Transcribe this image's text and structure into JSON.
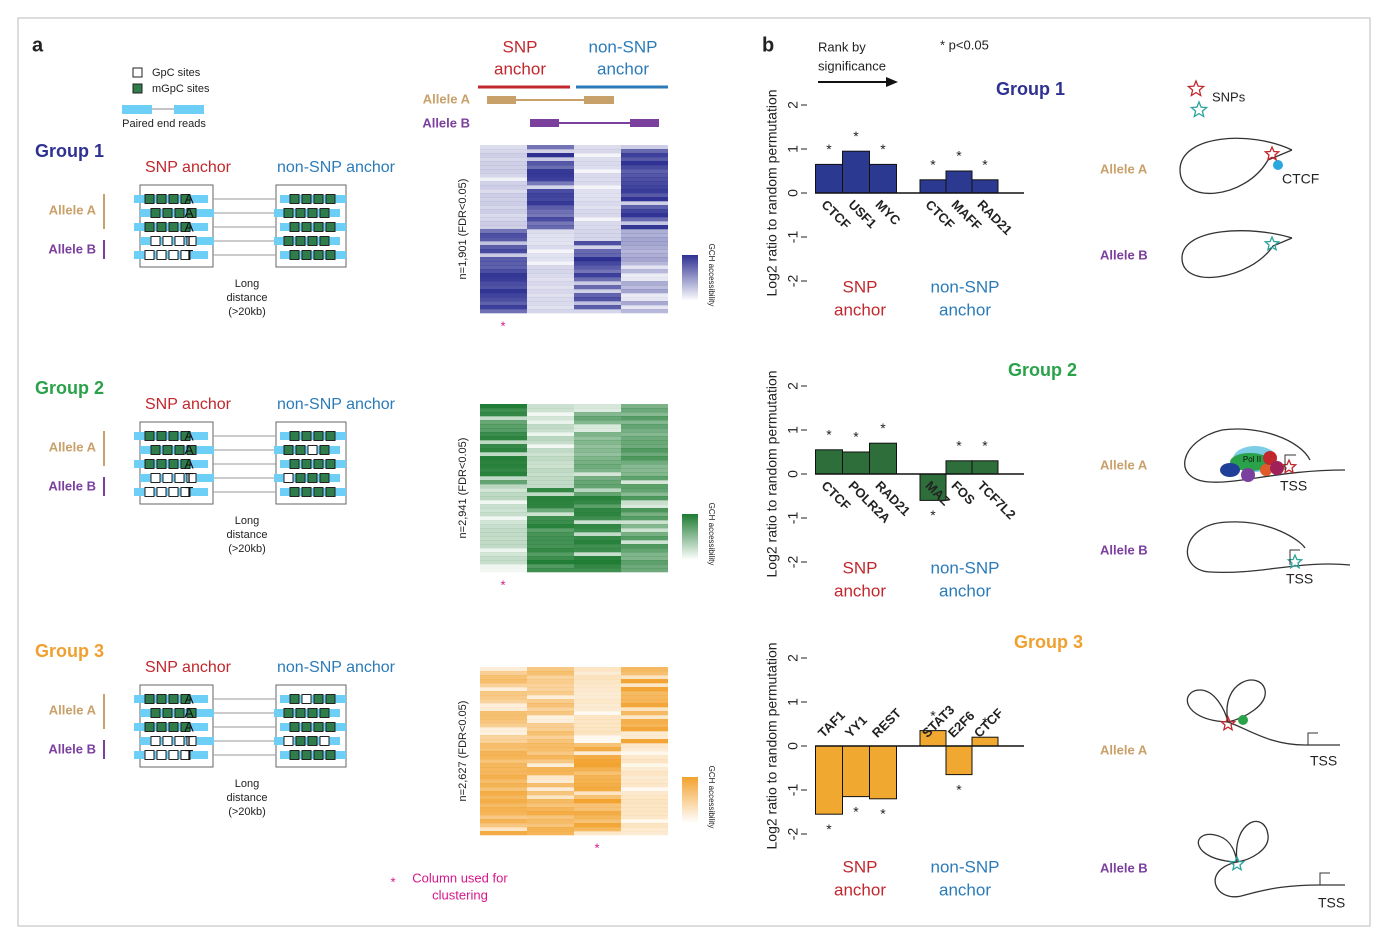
{
  "chart_data": [
    {
      "type": "bar",
      "title": "Group 1",
      "categories": [
        "CTCF",
        "USF1",
        "MYC",
        "CTCF",
        "MAFF",
        "RAD21"
      ],
      "values": [
        0.65,
        0.95,
        0.65,
        0.3,
        0.5,
        0.3
      ],
      "significance": [
        "*",
        "*",
        "*",
        "*",
        "*",
        "*"
      ],
      "group_labels": [
        [
          "SNP",
          "anchor"
        ],
        [
          "non-SNP",
          "anchor"
        ]
      ],
      "ylabel": "Log2 ratio to random permutation",
      "ylim": [
        -2,
        2
      ],
      "yticks": [
        -2,
        -1,
        0,
        1,
        2
      ],
      "color": "#2b3990",
      "title_color": "#2e3192"
    },
    {
      "type": "bar",
      "title": "Group 2",
      "categories": [
        "CTCF",
        "POLR2A",
        "RAD21",
        "MAZ",
        "FOS",
        "TCF7L2"
      ],
      "values": [
        0.55,
        0.5,
        0.7,
        -0.6,
        0.3,
        0.3
      ],
      "significance": [
        "*",
        "*",
        "*",
        "*",
        "*",
        "*"
      ],
      "group_labels": [
        [
          "SNP",
          "anchor"
        ],
        [
          "non-SNP",
          "anchor"
        ]
      ],
      "ylabel": "Log2 ratio to random permutation",
      "ylim": [
        -2,
        2
      ],
      "yticks": [
        -2,
        -1,
        0,
        1,
        2
      ],
      "color": "#2e6e3a",
      "title_color": "#2aa24a"
    },
    {
      "type": "bar",
      "title": "Group 3",
      "categories": [
        "TAF1",
        "YY1",
        "REST",
        "STAT3",
        "E2F6",
        "CTCF"
      ],
      "values": [
        -1.55,
        -1.15,
        -1.2,
        0.35,
        -0.65,
        0.2
      ],
      "significance": [
        "*",
        "*",
        "*",
        "*",
        "*",
        "*"
      ],
      "group_labels": [
        [
          "SNP",
          "anchor"
        ],
        [
          "non-SNP",
          "anchor"
        ]
      ],
      "ylabel": "Log2 ratio to random permutation",
      "ylim": [
        -2,
        2
      ],
      "yticks": [
        -2,
        -1,
        0,
        1,
        2
      ],
      "color": "#f0a830",
      "title_color": "#f0a030"
    }
  ],
  "panel_a": {
    "label": "a",
    "legend": {
      "gpc": "GpC sites",
      "mgpc": "mGpC sites",
      "reads": "Paired end reads"
    },
    "heatmap_header": {
      "snp": [
        "SNP",
        "anchor"
      ],
      "nonsnp": [
        "non-SNP",
        "anchor"
      ],
      "allele_a": "Allele A",
      "allele_b": "Allele B"
    },
    "footnote": {
      "star": "*",
      "text": [
        "Column used for",
        "clustering"
      ]
    },
    "groups": [
      {
        "title": "Group 1",
        "snp_anchor": "SNP anchor",
        "nonsnp_anchor": "non-SNP anchor",
        "allele_a": "Allele A",
        "allele_b": "Allele B",
        "letters": [
          "A",
          "A",
          "A",
          "T",
          "T"
        ],
        "distance": [
          "Long",
          "distance",
          "(>20kb)"
        ],
        "heatmap_label": "n=1,901 (FDR<0.05)",
        "colorbar_label": "GCH accessibility",
        "cluster_star": "*",
        "color": "#2e3192"
      },
      {
        "title": "Group 2",
        "snp_anchor": "SNP anchor",
        "nonsnp_anchor": "non-SNP anchor",
        "allele_a": "Allele A",
        "allele_b": "Allele B",
        "letters": [
          "A",
          "A",
          "A",
          "T",
          "T"
        ],
        "distance": [
          "Long",
          "distance",
          "(>20kb)"
        ],
        "heatmap_label": "n=2,941 (FDR<0.05)",
        "colorbar_label": "GCH accessibility",
        "cluster_star": "*",
        "color": "#2aa24a"
      },
      {
        "title": "Group 3",
        "snp_anchor": "SNP anchor",
        "nonsnp_anchor": "non-SNP anchor",
        "allele_a": "Allele A",
        "allele_b": "Allele B",
        "letters": [
          "A",
          "A",
          "A",
          "T",
          "T"
        ],
        "distance": [
          "Long",
          "distance",
          "(>20kb)"
        ],
        "heatmap_label": "n=2,627 (FDR<0.05)",
        "colorbar_label": "GCH accessibility",
        "cluster_star": "*",
        "color": "#f0a030"
      }
    ]
  },
  "panel_b": {
    "label": "b",
    "rank": [
      "Rank by",
      "significance"
    ],
    "pvalue": "* p<0.05",
    "diagrams": {
      "snps": "SNPs",
      "rows": [
        {
          "allele_a": "Allele A",
          "allele_b": "Allele B",
          "labels_a": [
            "CTCF"
          ],
          "labels_b": []
        },
        {
          "allele_a": "Allele A",
          "allele_b": "Allele B",
          "labels_a": [
            "Pol II",
            "TSS"
          ],
          "labels_b": [
            "TSS"
          ]
        },
        {
          "allele_a": "Allele A",
          "allele_b": "Allele B",
          "labels_a": [
            "TSS"
          ],
          "labels_b": [
            "TSS"
          ]
        }
      ]
    }
  }
}
